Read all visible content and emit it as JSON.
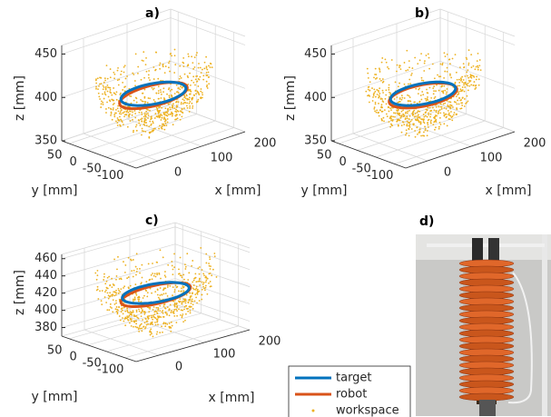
{
  "panels": [
    {
      "label": "a)",
      "x_label": "x [mm]",
      "y_label": "y [mm]",
      "z_label": "z [mm]",
      "xlim": [
        -50,
        200
      ],
      "ylim": [
        -130,
        70
      ],
      "zlim": [
        350,
        460
      ],
      "xticks": [
        0,
        100,
        200
      ],
      "yticks": [
        50,
        0,
        -50,
        -100
      ],
      "zticks": [
        350,
        400,
        450
      ]
    },
    {
      "label": "b)",
      "x_label": "x [mm]",
      "y_label": "y [mm]",
      "z_label": "z [mm]",
      "xlim": [
        -50,
        200
      ],
      "ylim": [
        -130,
        70
      ],
      "zlim": [
        350,
        460
      ],
      "xticks": [
        0,
        100,
        200
      ],
      "yticks": [
        50,
        0,
        -50,
        -100
      ],
      "zticks": [
        350,
        400,
        450
      ]
    },
    {
      "label": "c)",
      "x_label": "x [mm]",
      "y_label": "y [mm]",
      "z_label": "z [mm]",
      "xlim": [
        -50,
        200
      ],
      "ylim": [
        -130,
        70
      ],
      "zlim": [
        370,
        465
      ],
      "xticks": [
        0,
        100,
        200
      ],
      "yticks": [
        50,
        0,
        -50,
        -100
      ],
      "zticks": [
        380,
        400,
        420,
        440,
        460
      ]
    }
  ],
  "photo": {
    "label": "d)"
  },
  "legend": {
    "items": [
      {
        "name": "target",
        "color": "#0072bd"
      },
      {
        "name": "robot",
        "color": "#d95319"
      },
      {
        "name": "workspace",
        "color": "#edb120"
      }
    ]
  }
}
